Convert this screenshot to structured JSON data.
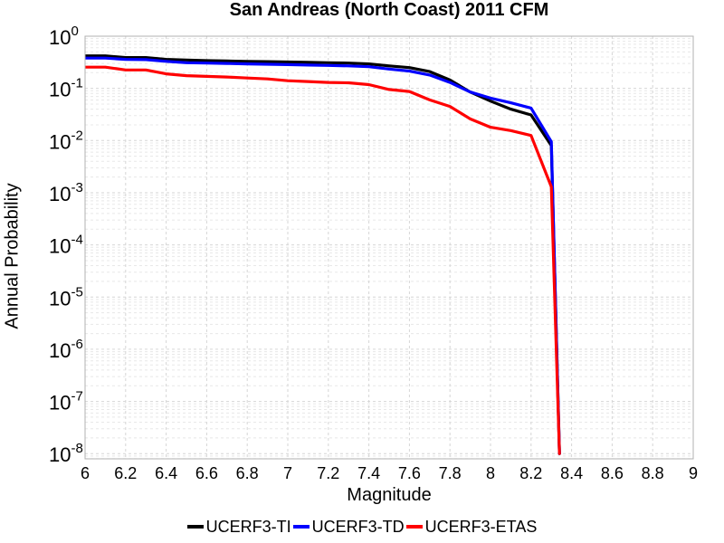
{
  "chart_data": {
    "type": "line",
    "title": "San Andreas (North Coast) 2011 CFM",
    "xlabel": "Magnitude",
    "ylabel": "Annual Probability",
    "xlim": [
      6,
      9
    ],
    "ylim_exponents": [
      -8.1,
      0
    ],
    "y_scale": "log",
    "grid": true,
    "legend_position": "bottom",
    "x_ticks": [
      "6",
      "6.2",
      "6.4",
      "6.6",
      "6.8",
      "7",
      "7.2",
      "7.4",
      "7.6",
      "7.8",
      "8",
      "8.2",
      "8.4",
      "8.6",
      "8.8",
      "9"
    ],
    "y_ticks": [
      {
        "base": "10",
        "exp": "0"
      },
      {
        "base": "10",
        "exp": "-1"
      },
      {
        "base": "10",
        "exp": "-2"
      },
      {
        "base": "10",
        "exp": "-3"
      },
      {
        "base": "10",
        "exp": "-4"
      },
      {
        "base": "10",
        "exp": "-5"
      },
      {
        "base": "10",
        "exp": "-6"
      },
      {
        "base": "10",
        "exp": "-7"
      },
      {
        "base": "10",
        "exp": "-8"
      }
    ],
    "x": [
      6.0,
      6.1,
      6.2,
      6.3,
      6.4,
      6.5,
      6.6,
      6.7,
      6.8,
      6.9,
      7.0,
      7.1,
      7.2,
      7.3,
      7.4,
      7.5,
      7.6,
      7.7,
      7.8,
      7.9,
      8.0,
      8.1,
      8.2,
      8.3,
      8.34
    ],
    "series": [
      {
        "name": "UCERF3-TI",
        "color": "#000000",
        "values": [
          0.42,
          0.42,
          0.39,
          0.39,
          0.36,
          0.35,
          0.34,
          0.335,
          0.33,
          0.325,
          0.32,
          0.315,
          0.31,
          0.305,
          0.295,
          0.27,
          0.25,
          0.21,
          0.145,
          0.085,
          0.057,
          0.04,
          0.031,
          0.008,
          1e-08
        ]
      },
      {
        "name": "UCERF3-TD",
        "color": "#0000ff",
        "values": [
          0.38,
          0.38,
          0.36,
          0.355,
          0.33,
          0.31,
          0.305,
          0.3,
          0.295,
          0.29,
          0.285,
          0.28,
          0.275,
          0.27,
          0.26,
          0.235,
          0.215,
          0.18,
          0.13,
          0.085,
          0.065,
          0.053,
          0.042,
          0.0095,
          1e-08
        ]
      },
      {
        "name": "UCERF3-ETAS",
        "color": "#ff0000",
        "values": [
          0.255,
          0.255,
          0.225,
          0.225,
          0.19,
          0.175,
          0.17,
          0.165,
          0.158,
          0.152,
          0.14,
          0.135,
          0.13,
          0.128,
          0.118,
          0.095,
          0.087,
          0.06,
          0.045,
          0.026,
          0.018,
          0.0155,
          0.0125,
          0.0013,
          1e-08
        ]
      }
    ]
  }
}
